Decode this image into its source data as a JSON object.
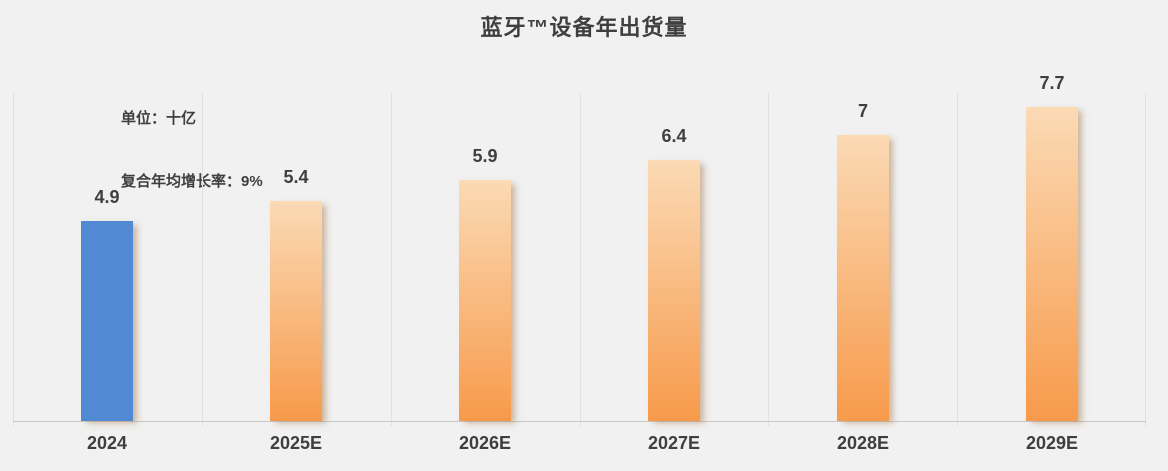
{
  "header": {
    "title": "蓝牙™设备年出货量",
    "unit_line": "单位：十亿",
    "cagr_line": "复合年均增长率：9%"
  },
  "chart_data": {
    "type": "bar",
    "title": "蓝牙™设备年出货量",
    "annotations": [
      "单位：十亿",
      "复合年均增长率：9%"
    ],
    "categories": [
      "2024",
      "2025E",
      "2026E",
      "2027E",
      "2028E",
      "2029E"
    ],
    "values": [
      4.9,
      5.4,
      5.9,
      6.4,
      7,
      7.7
    ],
    "value_labels": [
      "4.9",
      "5.4",
      "5.9",
      "6.4",
      "7",
      "7.7"
    ],
    "xlabel": "",
    "ylabel": "",
    "ylim": [
      0,
      8
    ],
    "legend_position": "none",
    "grid": "vertical-category-separators",
    "highlight_category": "2024",
    "cagr_percent": 9
  },
  "styles": {
    "background": "#F1F1F1",
    "text_color": "#3F3F3F",
    "gridline_color": "#E1E1E1",
    "axis_line_color": "#C8C8C8",
    "highlight_bar_color": "#5289D3",
    "forecast_bar_top_color": "#FBDAB5",
    "forecast_bar_bottom_color": "#F79A4B"
  }
}
